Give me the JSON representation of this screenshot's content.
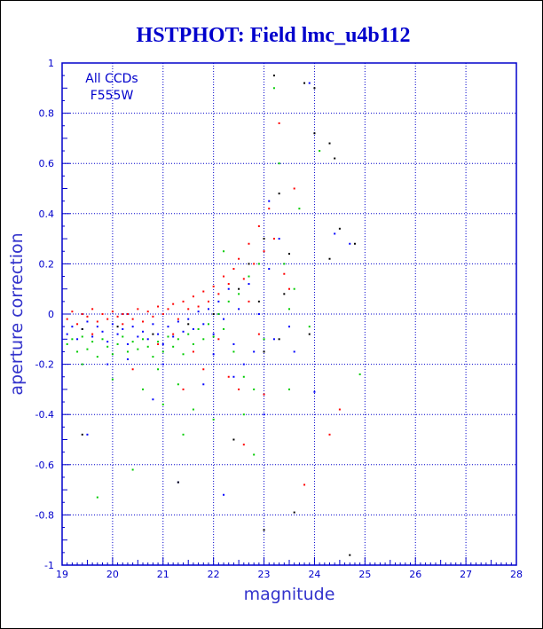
{
  "chart_data": {
    "type": "scatter",
    "title": "HSTPHOT: Field lmc_u4b112",
    "xlabel": "magnitude",
    "ylabel": "aperture correction",
    "xlim": [
      19,
      28
    ],
    "ylim": [
      -1,
      1
    ],
    "x_ticks": [
      "19",
      "20",
      "21",
      "22",
      "23",
      "24",
      "25",
      "26",
      "27",
      "28"
    ],
    "y_ticks": [
      "-1",
      "-0.8",
      "-0.6",
      "-0.4",
      "-0.2",
      "0",
      "0.2",
      "0.4",
      "0.6",
      "0.8",
      "1"
    ],
    "grid": true,
    "annotation": [
      "All CCDs",
      "F555W"
    ],
    "colors": {
      "axis": "#0000cc",
      "grid": "#0000cc",
      "title": "#0000cc"
    },
    "series": [
      {
        "color": "#ff0000",
        "points": [
          [
            19.1,
            -0.02
          ],
          [
            19.2,
            0.01
          ],
          [
            19.3,
            -0.04
          ],
          [
            19.4,
            0.0
          ],
          [
            19.5,
            -0.01
          ],
          [
            19.6,
            0.02
          ],
          [
            19.7,
            -0.03
          ],
          [
            19.8,
            0.0
          ],
          [
            19.9,
            -0.02
          ],
          [
            20.0,
            0.01
          ],
          [
            20.1,
            -0.01
          ],
          [
            20.2,
            -0.04
          ],
          [
            20.3,
            0.0
          ],
          [
            20.4,
            -0.02
          ],
          [
            20.5,
            0.02
          ],
          [
            20.6,
            -0.03
          ],
          [
            20.7,
            0.01
          ],
          [
            20.8,
            -0.01
          ],
          [
            20.9,
            0.03
          ],
          [
            21.0,
            0.0
          ],
          [
            21.1,
            0.02
          ],
          [
            21.2,
            0.04
          ],
          [
            21.3,
            -0.02
          ],
          [
            21.4,
            0.05
          ],
          [
            21.5,
            0.02
          ],
          [
            21.6,
            0.07
          ],
          [
            21.7,
            0.03
          ],
          [
            21.8,
            0.09
          ],
          [
            21.9,
            0.05
          ],
          [
            22.0,
            0.11
          ],
          [
            22.1,
            0.08
          ],
          [
            22.2,
            0.15
          ],
          [
            22.3,
            0.12
          ],
          [
            22.4,
            0.18
          ],
          [
            22.5,
            0.22
          ],
          [
            22.6,
            0.14
          ],
          [
            22.7,
            0.28
          ],
          [
            22.8,
            0.2
          ],
          [
            22.9,
            0.35
          ],
          [
            23.0,
            0.25
          ],
          [
            23.1,
            0.42
          ],
          [
            23.2,
            0.3
          ],
          [
            23.3,
            0.76
          ],
          [
            23.4,
            0.16
          ],
          [
            23.5,
            0.1
          ],
          [
            22.3,
            -0.25
          ],
          [
            21.8,
            -0.22
          ],
          [
            22.9,
            -0.08
          ],
          [
            23.0,
            -0.32
          ],
          [
            22.6,
            -0.52
          ],
          [
            21.4,
            -0.3
          ],
          [
            20.4,
            -0.22
          ],
          [
            24.3,
            -0.48
          ],
          [
            24.5,
            -0.38
          ],
          [
            23.8,
            -0.68
          ],
          [
            22.1,
            -0.1
          ],
          [
            21.6,
            -0.15
          ],
          [
            22.7,
            0.05
          ],
          [
            23.6,
            0.5
          ],
          [
            19.6,
            -0.08
          ],
          [
            20.9,
            -0.12
          ],
          [
            22.5,
            -0.3
          ],
          [
            21.2,
            -0.08
          ],
          [
            20.2,
            0.0
          ]
        ]
      },
      {
        "color": "#0000ff",
        "points": [
          [
            19.1,
            -0.08
          ],
          [
            19.2,
            -0.05
          ],
          [
            19.3,
            -0.1
          ],
          [
            19.4,
            -0.06
          ],
          [
            19.5,
            -0.03
          ],
          [
            19.6,
            -0.09
          ],
          [
            19.7,
            -0.05
          ],
          [
            19.8,
            -0.07
          ],
          [
            19.9,
            -0.11
          ],
          [
            20.0,
            -0.04
          ],
          [
            20.1,
            -0.08
          ],
          [
            20.2,
            -0.06
          ],
          [
            20.3,
            -0.12
          ],
          [
            20.4,
            -0.05
          ],
          [
            20.5,
            -0.09
          ],
          [
            20.6,
            -0.07
          ],
          [
            20.7,
            -0.1
          ],
          [
            20.8,
            -0.04
          ],
          [
            20.9,
            -0.08
          ],
          [
            21.0,
            -0.12
          ],
          [
            21.1,
            -0.05
          ],
          [
            21.2,
            -0.09
          ],
          [
            21.3,
            -0.03
          ],
          [
            21.4,
            -0.07
          ],
          [
            21.5,
            -0.02
          ],
          [
            21.6,
            -0.06
          ],
          [
            21.7,
            0.01
          ],
          [
            21.8,
            -0.04
          ],
          [
            21.9,
            0.02
          ],
          [
            22.0,
            -0.08
          ],
          [
            22.1,
            0.05
          ],
          [
            22.2,
            -0.02
          ],
          [
            22.3,
            0.1
          ],
          [
            22.4,
            -0.12
          ],
          [
            22.5,
            0.02
          ],
          [
            22.6,
            -0.2
          ],
          [
            22.7,
            0.12
          ],
          [
            22.8,
            -0.15
          ],
          [
            22.9,
            0.0
          ],
          [
            23.0,
            -0.4
          ],
          [
            23.1,
            0.45
          ],
          [
            23.2,
            -0.1
          ],
          [
            23.3,
            0.3
          ],
          [
            23.5,
            -0.05
          ],
          [
            23.9,
            0.92
          ],
          [
            24.4,
            0.32
          ],
          [
            24.7,
            0.28
          ],
          [
            23.1,
            0.18
          ],
          [
            22.2,
            -0.72
          ],
          [
            21.3,
            -0.67
          ],
          [
            24.0,
            -0.31
          ],
          [
            23.6,
            -0.15
          ],
          [
            19.5,
            -0.48
          ],
          [
            20.8,
            -0.34
          ],
          [
            22.4,
            -0.25
          ],
          [
            21.8,
            -0.28
          ],
          [
            20.3,
            -0.18
          ],
          [
            19.9,
            -0.2
          ],
          [
            22.0,
            -0.16
          ],
          [
            21.0,
            -0.2
          ]
        ]
      },
      {
        "color": "#00cc00",
        "points": [
          [
            19.1,
            -0.12
          ],
          [
            19.2,
            -0.1
          ],
          [
            19.3,
            -0.15
          ],
          [
            19.4,
            -0.09
          ],
          [
            19.5,
            -0.14
          ],
          [
            19.6,
            -0.11
          ],
          [
            19.7,
            -0.17
          ],
          [
            19.8,
            -0.1
          ],
          [
            19.9,
            -0.13
          ],
          [
            20.0,
            -0.16
          ],
          [
            20.1,
            -0.12
          ],
          [
            20.2,
            -0.09
          ],
          [
            20.3,
            -0.15
          ],
          [
            20.4,
            -0.11
          ],
          [
            20.5,
            -0.14
          ],
          [
            20.6,
            -0.1
          ],
          [
            20.7,
            -0.13
          ],
          [
            20.8,
            -0.17
          ],
          [
            20.9,
            -0.11
          ],
          [
            21.0,
            -0.15
          ],
          [
            21.1,
            -0.09
          ],
          [
            21.2,
            -0.13
          ],
          [
            21.3,
            -0.1
          ],
          [
            21.4,
            -0.16
          ],
          [
            21.5,
            -0.08
          ],
          [
            21.6,
            -0.12
          ],
          [
            21.7,
            -0.06
          ],
          [
            21.8,
            -0.1
          ],
          [
            21.9,
            -0.04
          ],
          [
            22.0,
            -0.09
          ],
          [
            22.1,
            0.0
          ],
          [
            22.2,
            -0.06
          ],
          [
            22.3,
            0.05
          ],
          [
            22.4,
            -0.15
          ],
          [
            22.5,
            0.08
          ],
          [
            22.6,
            -0.25
          ],
          [
            22.7,
            0.15
          ],
          [
            22.8,
            -0.3
          ],
          [
            22.9,
            0.2
          ],
          [
            23.0,
            -0.1
          ],
          [
            23.2,
            0.9
          ],
          [
            23.3,
            0.6
          ],
          [
            23.4,
            0.2
          ],
          [
            23.6,
            0.1
          ],
          [
            23.7,
            0.42
          ],
          [
            24.1,
            0.65
          ],
          [
            23.5,
            -0.3
          ],
          [
            24.9,
            -0.24
          ],
          [
            19.7,
            -0.73
          ],
          [
            20.4,
            -0.62
          ],
          [
            21.4,
            -0.48
          ],
          [
            22.8,
            -0.56
          ],
          [
            23.5,
            0.02
          ],
          [
            21.0,
            -0.36
          ],
          [
            20.0,
            -0.26
          ],
          [
            19.4,
            -0.2
          ],
          [
            22.0,
            -0.42
          ],
          [
            21.6,
            -0.38
          ],
          [
            20.6,
            -0.3
          ],
          [
            22.6,
            -0.4
          ],
          [
            23.9,
            -0.05
          ],
          [
            22.2,
            0.25
          ],
          [
            20.9,
            -0.22
          ],
          [
            21.3,
            -0.28
          ]
        ]
      },
      {
        "color": "#000000",
        "points": [
          [
            19.4,
            -0.06
          ],
          [
            20.1,
            -0.05
          ],
          [
            20.8,
            -0.08
          ],
          [
            21.5,
            -0.04
          ],
          [
            22.0,
            0.0
          ],
          [
            22.5,
            0.1
          ],
          [
            22.9,
            0.05
          ],
          [
            23.0,
            0.3
          ],
          [
            23.2,
            0.95
          ],
          [
            23.3,
            0.48
          ],
          [
            23.5,
            0.24
          ],
          [
            23.8,
            0.92
          ],
          [
            24.0,
            0.9
          ],
          [
            24.3,
            0.68
          ],
          [
            24.4,
            0.62
          ],
          [
            24.5,
            0.34
          ],
          [
            24.3,
            0.22
          ],
          [
            24.8,
            0.28
          ],
          [
            23.0,
            -0.86
          ],
          [
            23.6,
            -0.79
          ],
          [
            24.7,
            -0.96
          ],
          [
            21.3,
            -0.67
          ],
          [
            19.4,
            -0.48
          ],
          [
            23.9,
            -0.08
          ],
          [
            22.4,
            -0.5
          ],
          [
            23.3,
            -0.1
          ],
          [
            23.0,
            -0.15
          ],
          [
            22.7,
            0.2
          ],
          [
            23.4,
            0.08
          ],
          [
            24.0,
            0.72
          ]
        ]
      }
    ]
  }
}
